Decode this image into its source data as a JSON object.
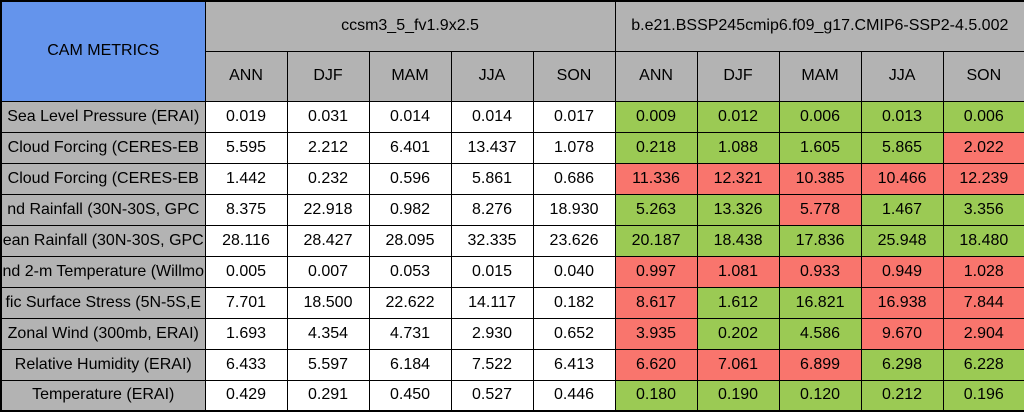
{
  "palette": {
    "green": "#9bca54",
    "red": "#f9756d",
    "header_gray": "#b3b3b3",
    "title_blue": "#6494ec",
    "cell_white": "#ffffff"
  },
  "chart_data": {
    "type": "table",
    "title": "CAM METRICS",
    "models": [
      "ccsm3_5_fv1.9x2.5",
      "b.e21.BSSP245cmip6.f09_g17.CMIP6-SSP2-4.5.002"
    ],
    "seasons": [
      "ANN",
      "DJF",
      "MAM",
      "JJA",
      "SON"
    ],
    "rows": [
      {
        "label": "Sea Level Pressure (ERAI)",
        "m1": [
          "0.019",
          "0.031",
          "0.014",
          "0.014",
          "0.017"
        ],
        "m2": [
          "0.009",
          "0.012",
          "0.006",
          "0.013",
          "0.006"
        ],
        "c2": [
          "green",
          "green",
          "green",
          "green",
          "green"
        ]
      },
      {
        "label": "Cloud Forcing (CERES-EB",
        "m1": [
          "5.595",
          "2.212",
          "6.401",
          "13.437",
          "1.078"
        ],
        "m2": [
          "0.218",
          "1.088",
          "1.605",
          "5.865",
          "2.022"
        ],
        "c2": [
          "green",
          "green",
          "green",
          "green",
          "red"
        ]
      },
      {
        "label": "Cloud Forcing (CERES-EB",
        "m1": [
          "1.442",
          "0.232",
          "0.596",
          "5.861",
          "0.686"
        ],
        "m2": [
          "11.336",
          "12.321",
          "10.385",
          "10.466",
          "12.239"
        ],
        "c2": [
          "red",
          "red",
          "red",
          "red",
          "red"
        ]
      },
      {
        "label": "nd Rainfall (30N-30S, GPC",
        "m1": [
          "8.375",
          "22.918",
          "0.982",
          "8.276",
          "18.930"
        ],
        "m2": [
          "5.263",
          "13.326",
          "5.778",
          "1.467",
          "3.356"
        ],
        "c2": [
          "green",
          "green",
          "red",
          "green",
          "green"
        ]
      },
      {
        "label": "ean Rainfall (30N-30S, GPC",
        "m1": [
          "28.116",
          "28.427",
          "28.095",
          "32.335",
          "23.626"
        ],
        "m2": [
          "20.187",
          "18.438",
          "17.836",
          "25.948",
          "18.480"
        ],
        "c2": [
          "green",
          "green",
          "green",
          "green",
          "green"
        ]
      },
      {
        "label": "nd 2-m Temperature (Willmo",
        "m1": [
          "0.005",
          "0.007",
          "0.053",
          "0.015",
          "0.040"
        ],
        "m2": [
          "0.997",
          "1.081",
          "0.933",
          "0.949",
          "1.028"
        ],
        "c2": [
          "red",
          "red",
          "red",
          "red",
          "red"
        ]
      },
      {
        "label": "fic Surface Stress (5N-5S,E",
        "m1": [
          "7.701",
          "18.500",
          "22.622",
          "14.117",
          "0.182"
        ],
        "m2": [
          "8.617",
          "1.612",
          "16.821",
          "16.938",
          "7.844"
        ],
        "c2": [
          "red",
          "green",
          "green",
          "red",
          "red"
        ]
      },
      {
        "label": "Zonal Wind (300mb, ERAI)",
        "m1": [
          "1.693",
          "4.354",
          "4.731",
          "2.930",
          "0.652"
        ],
        "m2": [
          "3.935",
          "0.202",
          "4.586",
          "9.670",
          "2.904"
        ],
        "c2": [
          "red",
          "green",
          "green",
          "red",
          "red"
        ]
      },
      {
        "label": "Relative Humidity (ERAI)",
        "m1": [
          "6.433",
          "5.597",
          "6.184",
          "7.522",
          "6.413"
        ],
        "m2": [
          "6.620",
          "7.061",
          "6.899",
          "6.298",
          "6.228"
        ],
        "c2": [
          "red",
          "red",
          "red",
          "green",
          "green"
        ]
      },
      {
        "label": "Temperature (ERAI)",
        "m1": [
          "0.429",
          "0.291",
          "0.450",
          "0.527",
          "0.446"
        ],
        "m2": [
          "0.180",
          "0.190",
          "0.120",
          "0.212",
          "0.196"
        ],
        "c2": [
          "green",
          "green",
          "green",
          "green",
          "green"
        ]
      }
    ]
  }
}
